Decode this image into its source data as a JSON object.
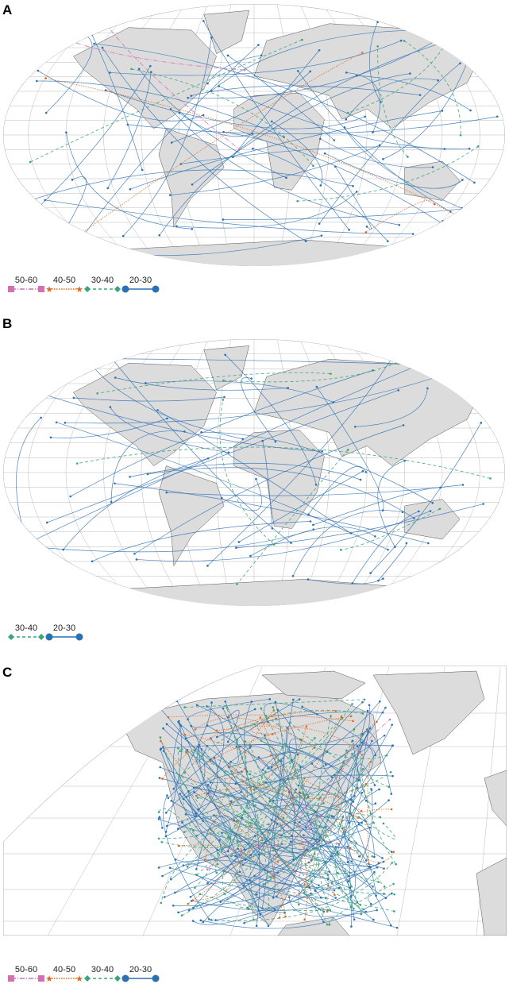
{
  "panels": [
    {
      "label": "A",
      "legend": [
        "50-60",
        "40-50",
        "30-40",
        "20-30"
      ]
    },
    {
      "label": "B",
      "legend": [
        "30-40",
        "20-30"
      ]
    },
    {
      "label": "C",
      "legend": [
        "50-60",
        "40-50",
        "30-40",
        "20-30"
      ]
    }
  ],
  "legend_styles": {
    "50-60": {
      "color": "#d46fb0",
      "marker": "square",
      "dash": "dash-dot"
    },
    "40-50": {
      "color": "#e0691c",
      "marker": "star",
      "dash": "dotted"
    },
    "30-40": {
      "color": "#3aa57a",
      "marker": "diamond",
      "dash": "dashed"
    },
    "20-30": {
      "color": "#2b70b3",
      "marker": "circle",
      "dash": "solid"
    }
  },
  "colors": {
    "land": "#dcdcdc",
    "coast": "#555555",
    "graticule": "#aaaaaa"
  }
}
